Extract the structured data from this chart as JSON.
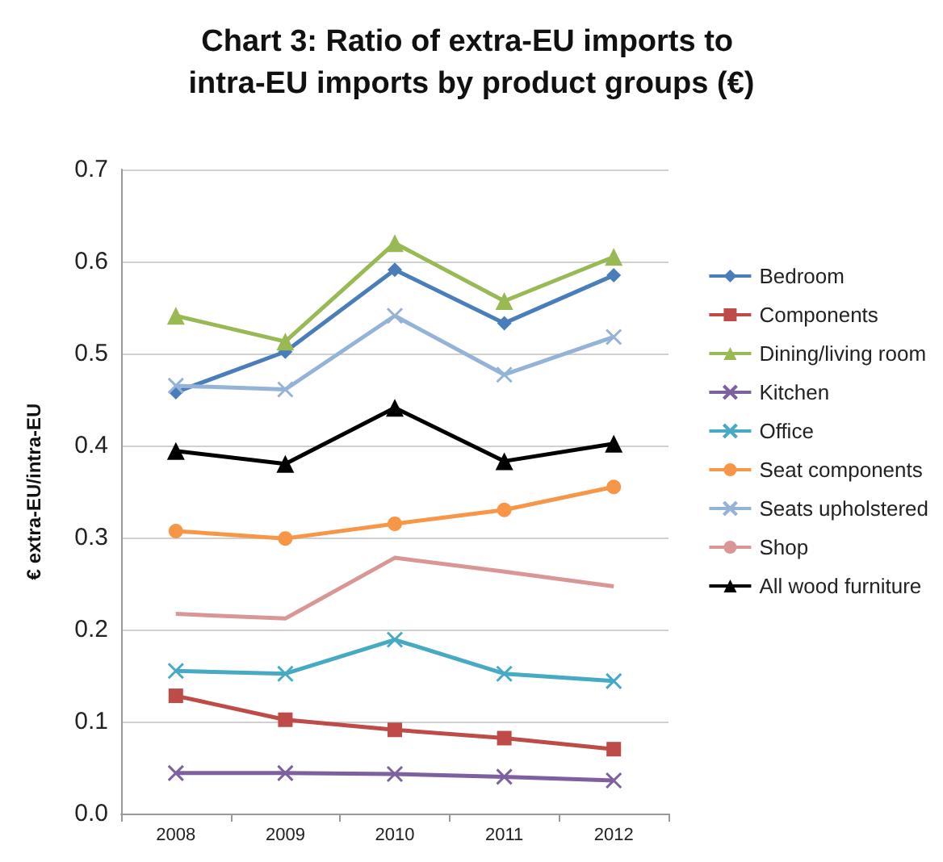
{
  "chart_data": {
    "type": "line",
    "title": "Chart 3: Ratio of extra-EU imports to intra-EU imports by product groups (€)",
    "ylabel": "€ extra-EU/intra-EU",
    "categories": [
      "2008",
      "2009",
      "2010",
      "2011",
      "2012"
    ],
    "series": [
      {
        "name": "Bedroom",
        "color": "#4a7ebb",
        "marker": "diamond",
        "values": [
          0.458,
          0.502,
          0.591,
          0.533,
          0.585
        ]
      },
      {
        "name": "Components",
        "color": "#be4b48",
        "marker": "square",
        "values": [
          0.128,
          0.102,
          0.091,
          0.082,
          0.07
        ]
      },
      {
        "name": "Dining/living room",
        "color": "#98b954",
        "marker": "triangle",
        "values": [
          0.541,
          0.513,
          0.62,
          0.557,
          0.605
        ]
      },
      {
        "name": "Kitchen",
        "color": "#7d60a0",
        "marker": "cross",
        "values": [
          0.044,
          0.044,
          0.043,
          0.04,
          0.036
        ]
      },
      {
        "name": "Office",
        "color": "#46aac5",
        "marker": "cross",
        "values": [
          0.155,
          0.152,
          0.189,
          0.152,
          0.144
        ]
      },
      {
        "name": "Seat components",
        "color": "#f79646",
        "marker": "circle",
        "values": [
          0.307,
          0.299,
          0.315,
          0.33,
          0.355
        ]
      },
      {
        "name": "Seats upholstered",
        "color": "#95b3d7",
        "marker": "cross",
        "values": [
          0.465,
          0.461,
          0.541,
          0.477,
          0.518
        ]
      },
      {
        "name": "Shop",
        "color": "#d99694",
        "marker": "none",
        "values": [
          0.217,
          0.212,
          0.278,
          0.263,
          0.247
        ]
      },
      {
        "name": "All wood furniture",
        "color": "#000000",
        "marker": "triangle",
        "values": [
          0.394,
          0.38,
          0.441,
          0.383,
          0.402
        ]
      }
    ],
    "ylim": [
      0,
      0.7
    ],
    "yticks": [
      {
        "value": 0,
        "label": "0.0"
      },
      0.1,
      0.2,
      0.3,
      0.4,
      0.5,
      0.6,
      0.7
    ],
    "grid": "y",
    "legend": "right"
  }
}
